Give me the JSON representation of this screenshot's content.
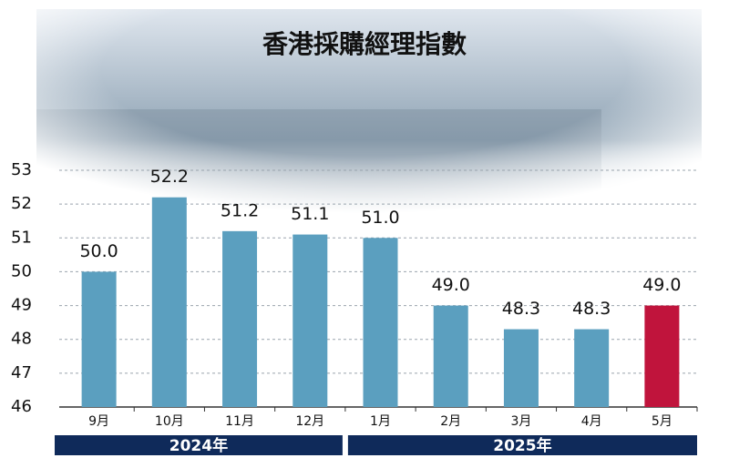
{
  "chart_data": {
    "type": "bar",
    "title": "香港採購經理指數",
    "categories": [
      "9月",
      "10月",
      "11月",
      "12月",
      "1月",
      "2月",
      "3月",
      "4月",
      "5月"
    ],
    "values": [
      50.0,
      52.2,
      51.2,
      51.1,
      51.0,
      49.0,
      48.3,
      48.3,
      49.0
    ],
    "value_labels": [
      "50.0",
      "52.2",
      "51.2",
      "51.1",
      "51.0",
      "49.0",
      "48.3",
      "48.3",
      "49.0"
    ],
    "colors": [
      "#5b9fbf",
      "#5b9fbf",
      "#5b9fbf",
      "#5b9fbf",
      "#5b9fbf",
      "#5b9fbf",
      "#5b9fbf",
      "#5b9fbf",
      "#c0143c"
    ],
    "ylim": [
      46,
      53
    ],
    "yticks": [
      46,
      47,
      48,
      49,
      50,
      51,
      52,
      53
    ],
    "grid": true,
    "groups": [
      {
        "label": "2024年",
        "span": 4
      },
      {
        "label": "2025年",
        "span": 5
      }
    ]
  }
}
